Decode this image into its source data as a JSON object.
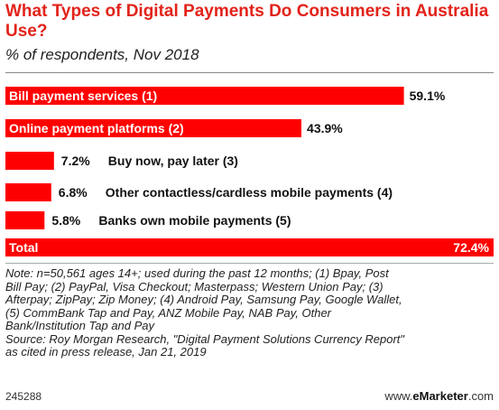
{
  "title": "What Types of Digital Payments Do Consumers in Australia Use?",
  "subtitle": "% of respondents, Nov 2018",
  "chart_data": {
    "type": "bar",
    "orientation": "horizontal",
    "categories": [
      "Bill payment services (1)",
      "Online payment platforms (2)",
      "Buy now, pay later (3)",
      "Other contactless/cardless mobile payments (4)",
      "Banks own mobile payments (5)",
      "Total"
    ],
    "values": [
      59.1,
      43.9,
      7.2,
      6.8,
      5.8,
      72.4
    ],
    "value_labels": [
      "59.1%",
      "43.9%",
      "7.2%",
      "6.8%",
      "5.8%",
      "72.4%"
    ],
    "xlim": [
      0,
      72.4
    ],
    "bar_color": "#ff0000",
    "grid": false,
    "legend": "none"
  },
  "notes": [
    "Note: n=50,561 ages 14+; used during the past 12 months; (1) Bpay, Post",
    "Bill Pay; (2) PayPal, Visa Checkout; Masterpass; Western Union Pay; (3)",
    "Afterpay; ZipPay; Zip Money; (4) Android Pay, Samsung Pay, Google Wallet,",
    "(5) CommBank Tap and Pay, ANZ Mobile Pay, NAB Pay, Other",
    "Bank/Institution Tap and Pay",
    "Source: Roy Morgan Research, \"Digital Payment Solutions Currency Report\"",
    "as cited in press release, Jan 21, 2019"
  ],
  "footer": {
    "chart_id": "245288",
    "brand_prefix": "www.",
    "brand_name": "eMarketer",
    "brand_suffix": ".com"
  }
}
